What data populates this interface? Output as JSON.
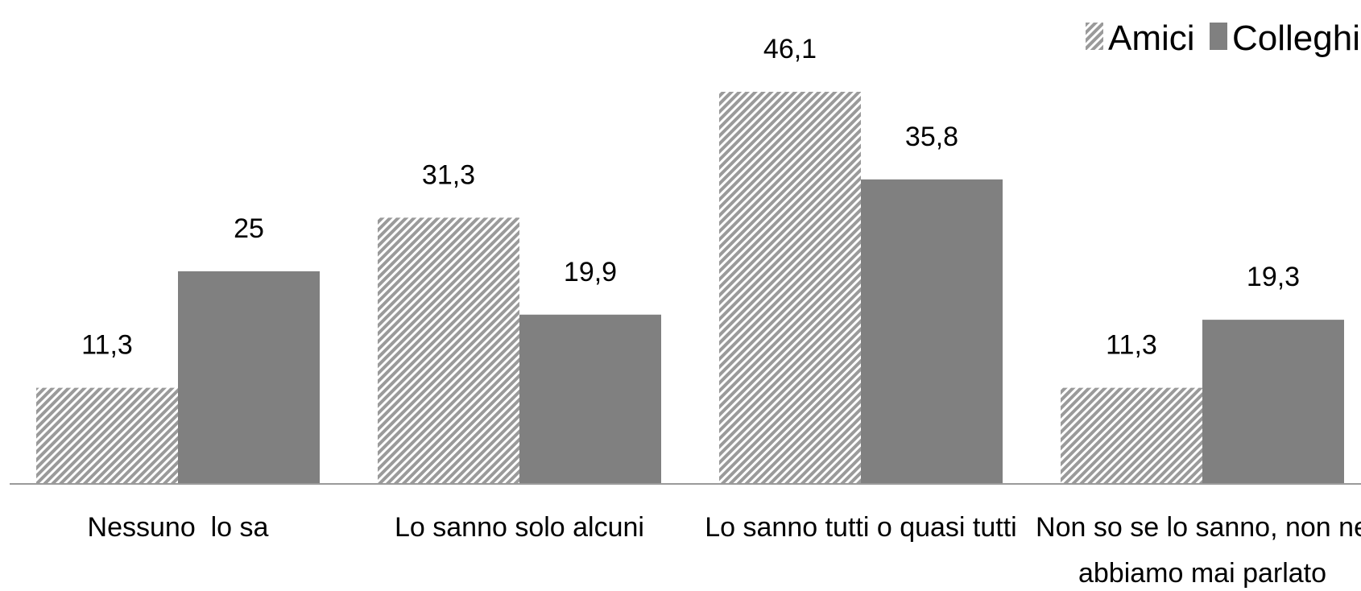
{
  "chart_data": {
    "type": "bar",
    "categories": [
      [
        "Nessuno  lo sa"
      ],
      [
        "Lo sanno solo alcuni"
      ],
      [
        "Lo sanno tutti o quasi tutti"
      ],
      [
        "Non so se lo sanno, non ne",
        "abbiamo mai parlato"
      ]
    ],
    "series": [
      {
        "name": "Amici",
        "values": [
          11.3,
          31.3,
          46.1,
          11.3
        ],
        "labels": [
          "11,3",
          "31,3",
          "46,1",
          "11,3"
        ],
        "color": "#a0a0a0",
        "pattern": "diagonal-hatch"
      },
      {
        "name": "Colleghi",
        "values": [
          25,
          19.9,
          35.8,
          19.3
        ],
        "labels": [
          "25",
          "19,9",
          "35,8",
          "19,3"
        ],
        "color": "#808080",
        "pattern": "solid"
      }
    ],
    "ylim": [
      0,
      50
    ],
    "grid": false,
    "legend_position": "top-right"
  }
}
